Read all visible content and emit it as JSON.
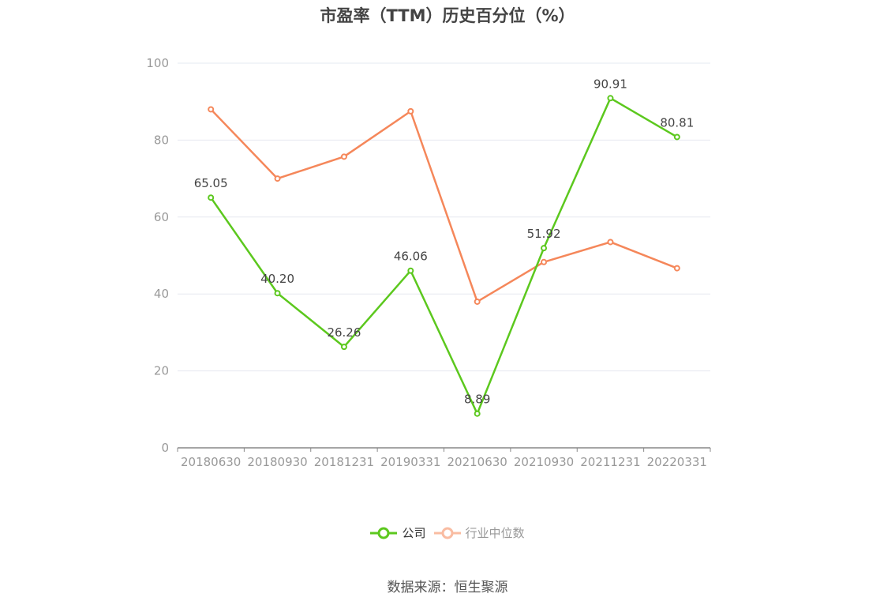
{
  "chart_data": {
    "type": "line",
    "title": "市盈率（TTM）历史百分位（%）",
    "categories": [
      "20180630",
      "20180930",
      "20181231",
      "20190331",
      "20210630",
      "20210930",
      "20211231",
      "20220331"
    ],
    "series": [
      {
        "name": "公司",
        "values": [
          65.05,
          40.2,
          26.26,
          46.06,
          8.89,
          51.92,
          90.91,
          80.81
        ],
        "labels": [
          "65.05",
          "40.20",
          "26.26",
          "46.06",
          "8.89",
          "51.92",
          "90.91",
          "80.81"
        ],
        "color": "#5cc81e"
      },
      {
        "name": "行业中位数",
        "values": [
          88,
          70,
          75.7,
          87.5,
          38,
          48.3,
          53.5,
          46.7
        ],
        "color": "#f5875a"
      }
    ],
    "ylim": [
      0,
      100
    ],
    "yticks": [
      "0",
      "20",
      "40",
      "60",
      "80",
      "100"
    ],
    "grid": true,
    "legend_position": "bottom"
  },
  "legend": {
    "inactive_color": "#f9bca2"
  },
  "source": "数据来源：恒生聚源"
}
